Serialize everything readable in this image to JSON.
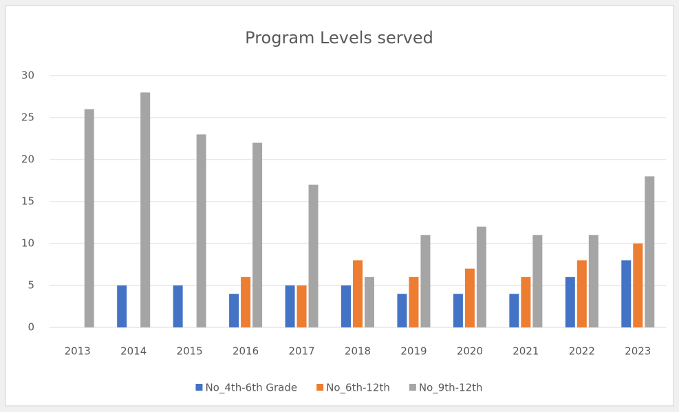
{
  "chart_data": {
    "type": "bar",
    "title": "Program Levels served",
    "categories": [
      "2013",
      "2014",
      "2015",
      "2016",
      "2017",
      "2018",
      "2019",
      "2020",
      "2021",
      "2022",
      "2023"
    ],
    "series": [
      {
        "name": "No_4th-6th Grade",
        "color": "#4472c4",
        "values": [
          0,
          5,
          5,
          4,
          5,
          5,
          4,
          4,
          4,
          6,
          8
        ]
      },
      {
        "name": "No_6th-12th",
        "color": "#ed7d31",
        "values": [
          0,
          0,
          0,
          6,
          5,
          8,
          6,
          7,
          6,
          8,
          10
        ]
      },
      {
        "name": "No_9th-12th",
        "color": "#a5a5a5",
        "values": [
          26,
          28,
          23,
          22,
          17,
          6,
          11,
          12,
          11,
          11,
          18
        ]
      }
    ],
    "ylim": [
      0,
      30
    ],
    "yticks": [
      0,
      5,
      10,
      15,
      20,
      25,
      30
    ],
    "grid": true,
    "legend": "bottom"
  }
}
